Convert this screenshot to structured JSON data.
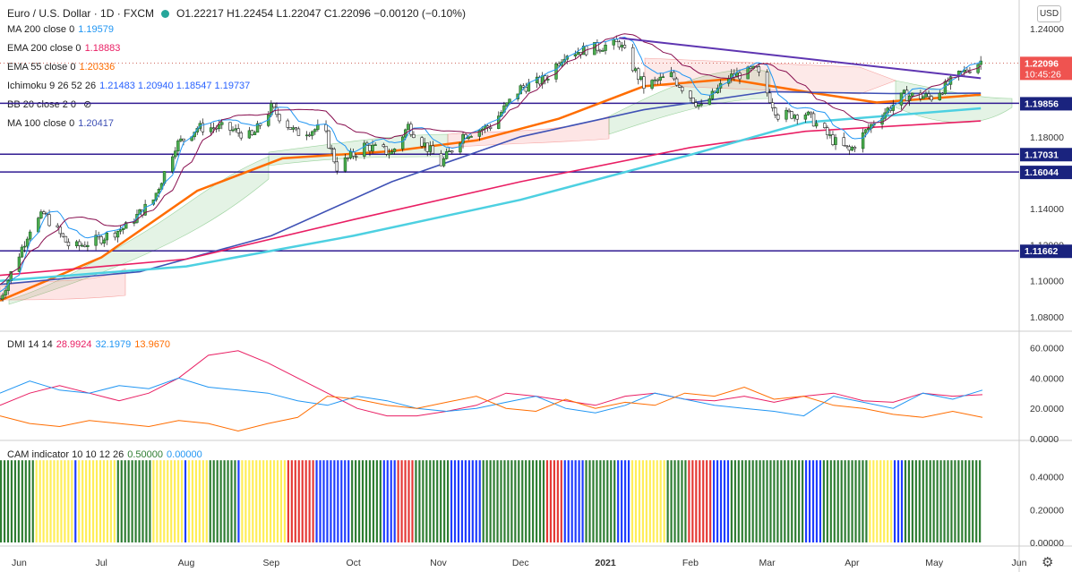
{
  "header": {
    "symbol": "Euro / U.S. Dollar · 1D · FXCM",
    "ohlc": "O1.22217  H1.22454  L1.22047  C1.22096  −0.00120 (−0.10%)"
  },
  "currency_button": "USD",
  "indicators": [
    {
      "label": "MA 200 close 0",
      "value": "1.19579",
      "color": "#2196f3"
    },
    {
      "label": "EMA 200 close 0",
      "value": "1.18883",
      "color": "#e91e63"
    },
    {
      "label": "EMA 55 close 0",
      "value": "1.20336",
      "color": "#ff6d00"
    },
    {
      "label": "Ichimoku 9 26 52 26",
      "value": "1.21483  1.20940  1.18547  1.19737",
      "color": "#2962ff"
    },
    {
      "label": "BB 20 close 2 0",
      "value": "",
      "color": "#888888"
    },
    {
      "label": "MA 100 close 0",
      "value": "1.20417",
      "color": "#3f51b5"
    }
  ],
  "dmi_legend": {
    "label": "DMI 14 14",
    "values": [
      "28.9924",
      "32.1979",
      "13.9670"
    ],
    "colors": [
      "#e91e63",
      "#2196f3",
      "#ff6d00"
    ]
  },
  "cam_legend": {
    "label": "CAM indicator 10 10 12 26",
    "values": [
      "0.50000",
      "0.00000"
    ],
    "colors": [
      "#2e7d32",
      "#2196f3"
    ]
  },
  "chart_data": {
    "type": "candlestick",
    "title": "Euro / U.S. Dollar · 1D · FXCM",
    "price_axis": {
      "ticks": [
        "1.24000",
        "1.22000",
        "1.20000",
        "1.18000",
        "1.16000",
        "1.14000",
        "1.12000",
        "1.10000",
        "1.08000"
      ],
      "ylim": [
        1.072,
        1.246
      ]
    },
    "price_labels": [
      {
        "text": "1.22096",
        "bg": "#ffffff",
        "fg": "#c0392b",
        "sub": "10:45:26"
      },
      {
        "text": "1.19856",
        "bg": "#ffffff",
        "fg": "#1a237e"
      },
      {
        "text": "1.17031",
        "bg": "#ffffff",
        "fg": "#1a237e"
      },
      {
        "text": "1.16044",
        "bg": "#ffffff",
        "fg": "#1a237e"
      },
      {
        "text": "1.11662",
        "bg": "#ffffff",
        "fg": "#1a237e"
      }
    ],
    "horizontal_levels": [
      1.19856,
      1.17031,
      1.16044,
      1.11662
    ],
    "trendline": {
      "from": [
        "2021-01-06",
        1.2349
      ],
      "to": [
        "2021-05-18",
        1.2125
      ]
    },
    "x_axis": {
      "ticks": [
        "Jun",
        "Jul",
        "Aug",
        "Sep",
        "Oct",
        "Nov",
        "Dec",
        "2021",
        "Feb",
        "Mar",
        "Apr",
        "May",
        "Jun"
      ]
    },
    "candles_close_path": [
      [
        "2020-05-25",
        1.09
      ],
      [
        "2020-06-05",
        1.129
      ],
      [
        "2020-06-10",
        1.137
      ],
      [
        "2020-06-20",
        1.118
      ],
      [
        "2020-06-30",
        1.123
      ],
      [
        "2020-07-10",
        1.13
      ],
      [
        "2020-07-20",
        1.145
      ],
      [
        "2020-07-28",
        1.175
      ],
      [
        "2020-08-05",
        1.185
      ],
      [
        "2020-08-15",
        1.185
      ],
      [
        "2020-08-25",
        1.18
      ],
      [
        "2020-09-01",
        1.196
      ],
      [
        "2020-09-10",
        1.182
      ],
      [
        "2020-09-20",
        1.185
      ],
      [
        "2020-09-25",
        1.163
      ],
      [
        "2020-10-05",
        1.175
      ],
      [
        "2020-10-15",
        1.171
      ],
      [
        "2020-10-21",
        1.186
      ],
      [
        "2020-11-02",
        1.165
      ],
      [
        "2020-11-10",
        1.181
      ],
      [
        "2020-11-20",
        1.186
      ],
      [
        "2020-12-01",
        1.207
      ],
      [
        "2020-12-10",
        1.212
      ],
      [
        "2020-12-17",
        1.226
      ],
      [
        "2020-12-30",
        1.23
      ],
      [
        "2021-01-06",
        1.232
      ],
      [
        "2021-01-15",
        1.208
      ],
      [
        "2021-01-25",
        1.214
      ],
      [
        "2021-02-05",
        1.196
      ],
      [
        "2021-02-15",
        1.213
      ],
      [
        "2021-02-25",
        1.217
      ],
      [
        "2021-03-05",
        1.192
      ],
      [
        "2021-03-15",
        1.193
      ],
      [
        "2021-03-25",
        1.178
      ],
      [
        "2021-03-31",
        1.172
      ],
      [
        "2021-04-10",
        1.19
      ],
      [
        "2021-04-20",
        1.203
      ],
      [
        "2021-04-30",
        1.202
      ],
      [
        "2021-05-10",
        1.214
      ],
      [
        "2021-05-18",
        1.222
      ]
    ],
    "series": [
      {
        "name": "EMA 55",
        "color": "#ff6d00",
        "points": [
          [
            "2020-05-25",
            1.089
          ],
          [
            "2020-07-01",
            1.113
          ],
          [
            "2020-08-05",
            1.15
          ],
          [
            "2020-09-05",
            1.168
          ],
          [
            "2020-10-15",
            1.172
          ],
          [
            "2020-11-15",
            1.178
          ],
          [
            "2020-12-15",
            1.19
          ],
          [
            "2021-01-15",
            1.208
          ],
          [
            "2021-02-15",
            1.212
          ],
          [
            "2021-03-15",
            1.205
          ],
          [
            "2021-04-10",
            1.199
          ],
          [
            "2021-05-18",
            1.2034
          ]
        ]
      },
      {
        "name": "MA 100",
        "color": "#3f51b5",
        "points": [
          [
            "2020-05-25",
            1.098
          ],
          [
            "2020-07-15",
            1.105
          ],
          [
            "2020-09-01",
            1.125
          ],
          [
            "2020-10-15",
            1.155
          ],
          [
            "2020-12-01",
            1.18
          ],
          [
            "2021-01-15",
            1.195
          ],
          [
            "2021-03-01",
            1.205
          ],
          [
            "2021-04-15",
            1.204
          ],
          [
            "2021-05-18",
            1.2042
          ]
        ]
      },
      {
        "name": "EMA 200",
        "color": "#e91e63",
        "points": [
          [
            "2020-05-25",
            1.103
          ],
          [
            "2020-08-01",
            1.112
          ],
          [
            "2020-10-01",
            1.134
          ],
          [
            "2020-12-01",
            1.155
          ],
          [
            "2021-02-01",
            1.174
          ],
          [
            "2021-03-15",
            1.183
          ],
          [
            "2021-05-18",
            1.1888
          ]
        ]
      },
      {
        "name": "MA 200",
        "color": "#4dd0e1",
        "points": [
          [
            "2020-05-25",
            1.1
          ],
          [
            "2020-08-01",
            1.108
          ],
          [
            "2020-10-01",
            1.125
          ],
          [
            "2020-12-01",
            1.145
          ],
          [
            "2021-02-01",
            1.17
          ],
          [
            "2021-03-15",
            1.188
          ],
          [
            "2021-05-18",
            1.1958
          ]
        ]
      }
    ],
    "dmi": {
      "ylim": [
        0,
        65
      ],
      "ticks": [
        "60.0000",
        "40.0000",
        "20.0000",
        "0.0000"
      ],
      "series": [
        {
          "name": "",
          "color": "#e91e63",
          "values": [
            22,
            30,
            35,
            30,
            25,
            30,
            40,
            55,
            58,
            50,
            40,
            30,
            20,
            15,
            15,
            18,
            22,
            30,
            28,
            25,
            22,
            28,
            30,
            26,
            25,
            28,
            24,
            28,
            30,
            25,
            24,
            30,
            28,
            29
          ]
        },
        {
          "name": "",
          "color": "#2196f3",
          "values": [
            30,
            38,
            32,
            30,
            35,
            33,
            40,
            34,
            32,
            30,
            25,
            22,
            28,
            25,
            20,
            18,
            20,
            24,
            28,
            20,
            17,
            22,
            30,
            26,
            22,
            20,
            18,
            15,
            28,
            24,
            20,
            30,
            26,
            32
          ]
        },
        {
          "name": "",
          "color": "#ff6d00",
          "values": [
            15,
            10,
            8,
            12,
            10,
            8,
            12,
            10,
            5,
            10,
            14,
            28,
            26,
            22,
            20,
            24,
            28,
            20,
            18,
            26,
            20,
            24,
            22,
            30,
            28,
            34,
            26,
            28,
            22,
            20,
            16,
            14,
            18,
            14
          ]
        }
      ]
    },
    "cam": {
      "ylim": [
        0,
        0.55
      ],
      "ticks": [
        "0.40000",
        "0.20000",
        "0.00000"
      ],
      "palette": {
        "g": "#2e7d32",
        "y": "#ffee58",
        "b": "#1e3cff",
        "r": "#e53935"
      },
      "pattern": "ggggggggggyyyyyyyyyyybyyyyyyyyyyyggggggggggyyyyyyyyybyyyyyyggggggggbyyyyyyyyyyyyyrrrrrrrrbbbbbbbbbbgggggggggbbbbrrrrrggggggggggbbbbbbbbbggggggggggggggggggrrrrrbbbbbbgggggggggbbbbyyyyyyyyyyggggggrrrrrrrbbbbbgggggggggggggggggggggbbbbbgggggggggggggyyyyyyybbbgggggggggggggggggggggg"
    }
  }
}
